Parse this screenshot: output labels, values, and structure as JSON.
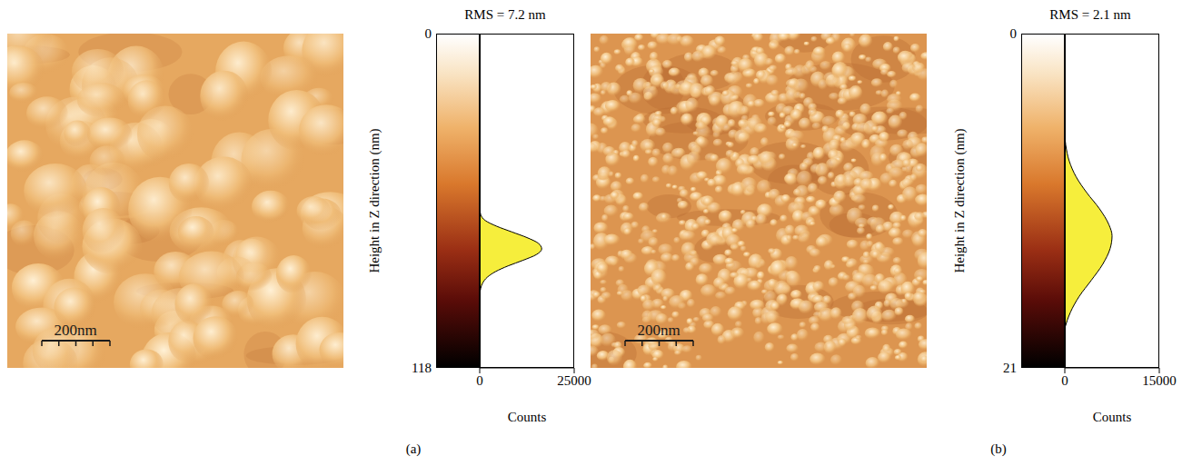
{
  "chart_data": [
    {
      "type": "area",
      "panel_label": "(a)",
      "scale_bar": "200nm",
      "title": "RMS = 7.2 nm",
      "orientation": "horizontal",
      "x_label": "Counts",
      "y_label": "Height in Z direction (nm)",
      "xlim": [
        0,
        25000
      ],
      "xticks": [
        0,
        25000
      ],
      "ylim": [
        0,
        118
      ],
      "yticks": [
        0,
        118
      ],
      "color": "#f6ee3c",
      "y": [
        62,
        64,
        66,
        68,
        70,
        72,
        74,
        76,
        78,
        80,
        82,
        84,
        86,
        88,
        90,
        92
      ],
      "values": [
        0,
        300,
        1500,
        4500,
        8500,
        12500,
        15500,
        16400,
        15000,
        11500,
        7500,
        4200,
        2000,
        800,
        250,
        0
      ]
    },
    {
      "type": "area",
      "panel_label": "(b)",
      "scale_bar": "200nm",
      "title": "RMS = 2.1 nm",
      "orientation": "horizontal",
      "x_label": "Counts",
      "y_label": "Height in Z direction (nm)",
      "xlim": [
        0,
        15000
      ],
      "xticks": [
        0,
        15000
      ],
      "ylim": [
        0,
        21
      ],
      "yticks": [
        0,
        21
      ],
      "color": "#f6ee3c",
      "y": [
        6.5,
        7,
        8,
        9,
        10,
        11,
        12,
        12.7,
        13.5,
        14.5,
        15.5,
        16.5,
        17.5,
        18,
        18.5
      ],
      "values": [
        0,
        150,
        700,
        1800,
        3500,
        5500,
        7000,
        7500,
        7200,
        6000,
        4200,
        2300,
        900,
        400,
        0
      ]
    }
  ]
}
